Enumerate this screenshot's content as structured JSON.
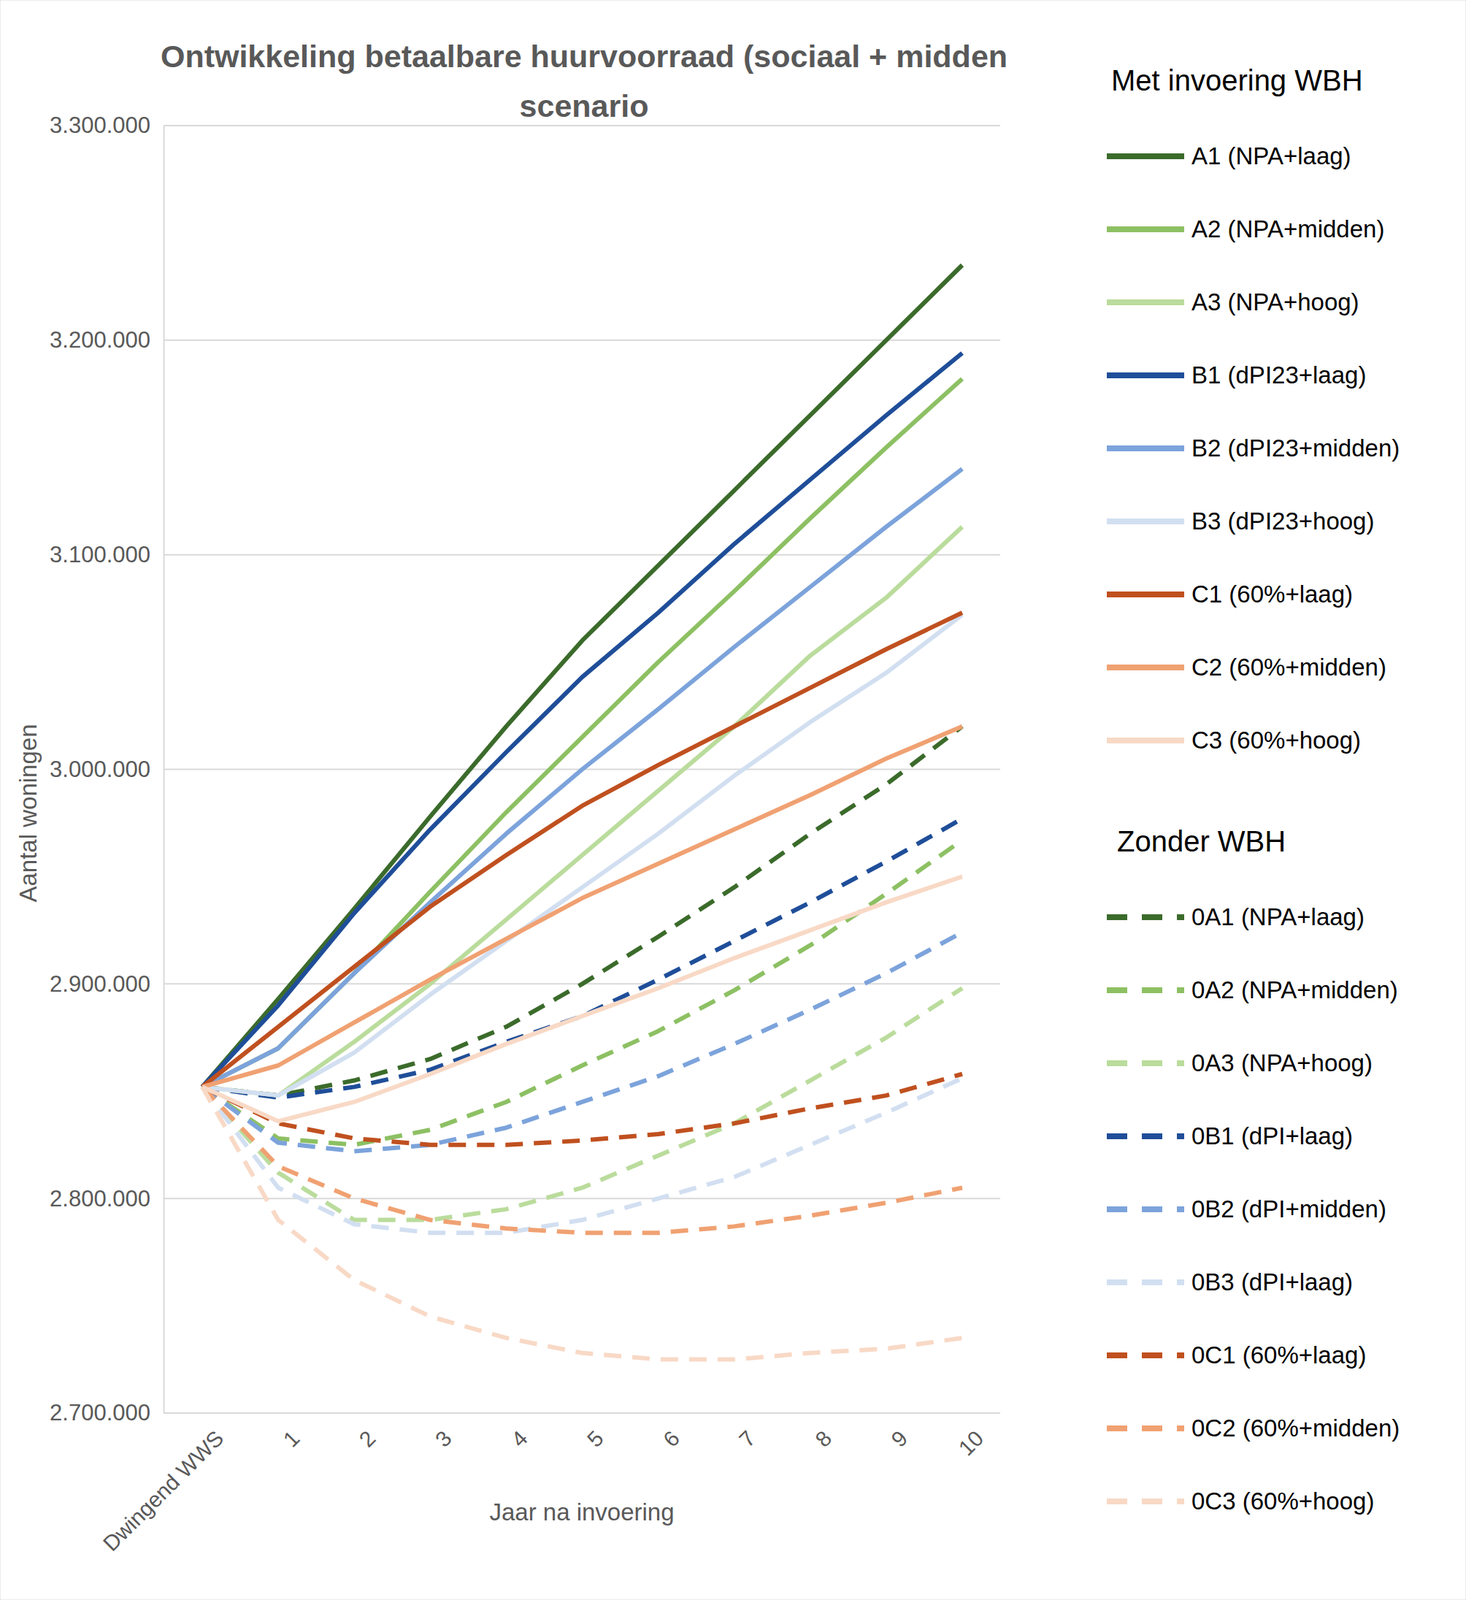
{
  "chart_data": {
    "type": "line",
    "title": "Ontwikkeling betaalbare huurvoorraad (sociaal + midden scenario",
    "x_label": "Jaar na invoering",
    "y_label": "Aantal woningen",
    "legend_titles": [
      "Met invoering WBH",
      "Zonder WBH"
    ],
    "categories": [
      "Dwingend WWS",
      "1",
      "2",
      "3",
      "4",
      "5",
      "6",
      "7",
      "8",
      "9",
      "10"
    ],
    "ylim": [
      2700000,
      3300000
    ],
    "yticks": [
      {
        "value": 2700000,
        "label": "2.700.000"
      },
      {
        "value": 2800000,
        "label": "2.800.000"
      },
      {
        "value": 2900000,
        "label": "2.900.000"
      },
      {
        "value": 3000000,
        "label": "3.000.000"
      },
      {
        "value": 3100000,
        "label": "3.100.000"
      },
      {
        "value": 3200000,
        "label": "3.200.000"
      },
      {
        "value": 3300000,
        "label": "3.300.000"
      }
    ],
    "grid": true,
    "legend": "right",
    "series": [
      {
        "name": "A1 (NPA+laag)",
        "color": "#3b6b2b",
        "line_style": "solid",
        "values": [
          2852000,
          2893000,
          2935000,
          2978000,
          3020000,
          3060000,
          3095000,
          3130000,
          3165000,
          3200000,
          3235000
        ]
      },
      {
        "name": "A2 (NPA+midden)",
        "color": "#8dc063",
        "line_style": "solid",
        "values": [
          2852000,
          2870000,
          2905000,
          2943000,
          2980000,
          3015000,
          3050000,
          3083000,
          3117000,
          3150000,
          3182000
        ]
      },
      {
        "name": "A3 (NPA+hoog)",
        "color": "#badc9c",
        "line_style": "solid",
        "values": [
          2852000,
          2848000,
          2873000,
          2900000,
          2930000,
          2960000,
          2990000,
          3020000,
          3053000,
          3080000,
          3113000
        ]
      },
      {
        "name": "B1 (dPI23+laag)",
        "color": "#1f4e99",
        "line_style": "solid",
        "values": [
          2852000,
          2890000,
          2933000,
          2972000,
          3008000,
          3043000,
          3073000,
          3105000,
          3135000,
          3165000,
          3194000
        ]
      },
      {
        "name": "B2 (dPI23+midden)",
        "color": "#7ca3db",
        "line_style": "solid",
        "values": [
          2852000,
          2870000,
          2905000,
          2938000,
          2970000,
          3000000,
          3028000,
          3057000,
          3085000,
          3113000,
          3140000
        ]
      },
      {
        "name": "B3 (dPI23+hoog)",
        "color": "#d2dff1",
        "line_style": "solid",
        "values": [
          2852000,
          2848000,
          2868000,
          2895000,
          2920000,
          2945000,
          2970000,
          2997000,
          3022000,
          3045000,
          3072000
        ]
      },
      {
        "name": "C1 (60%+laag)",
        "color": "#c0501f",
        "line_style": "solid",
        "values": [
          2852000,
          2880000,
          2908000,
          2936000,
          2960000,
          2983000,
          3002000,
          3020000,
          3038000,
          3056000,
          3073000
        ]
      },
      {
        "name": "C2 (60%+midden)",
        "color": "#f0a172",
        "line_style": "solid",
        "values": [
          2852000,
          2862000,
          2882000,
          2902000,
          2921000,
          2940000,
          2956000,
          2972000,
          2988000,
          3005000,
          3020000
        ]
      },
      {
        "name": "C3 (60%+hoog)",
        "color": "#f8d9c6",
        "line_style": "solid",
        "values": [
          2852000,
          2836000,
          2845000,
          2858000,
          2872000,
          2885000,
          2898000,
          2912000,
          2925000,
          2938000,
          2950000
        ]
      },
      {
        "name": "0A1 (NPA+laag)",
        "color": "#3b6b2b",
        "line_style": "dashed",
        "values": [
          2852000,
          2848000,
          2855000,
          2865000,
          2880000,
          2900000,
          2922000,
          2945000,
          2970000,
          2993000,
          3020000
        ]
      },
      {
        "name": "0A2 (NPA+midden)",
        "color": "#8dc063",
        "line_style": "dashed",
        "values": [
          2852000,
          2828000,
          2825000,
          2832000,
          2845000,
          2862000,
          2878000,
          2897000,
          2918000,
          2942000,
          2967000
        ]
      },
      {
        "name": "0A3 (NPA+hoog)",
        "color": "#badc9c",
        "line_style": "dashed",
        "values": [
          2852000,
          2812000,
          2790000,
          2790000,
          2795000,
          2805000,
          2820000,
          2835000,
          2855000,
          2875000,
          2898000
        ]
      },
      {
        "name": "0B1 (dPI+laag)",
        "color": "#1f4e99",
        "line_style": "dashed",
        "values": [
          2852000,
          2847000,
          2852000,
          2860000,
          2873000,
          2885000,
          2902000,
          2920000,
          2938000,
          2957000,
          2977000
        ]
      },
      {
        "name": "0B2 (dPI+midden)",
        "color": "#7ca3db",
        "line_style": "dashed",
        "values": [
          2852000,
          2826000,
          2822000,
          2825000,
          2833000,
          2845000,
          2857000,
          2872000,
          2888000,
          2905000,
          2924000
        ]
      },
      {
        "name": "0B3 (dPI+laag)",
        "color": "#d2dff1",
        "line_style": "dashed",
        "values": [
          2852000,
          2805000,
          2788000,
          2784000,
          2784000,
          2790000,
          2800000,
          2810000,
          2825000,
          2840000,
          2856000
        ]
      },
      {
        "name": "0C1 (60%+laag)",
        "color": "#c0501f",
        "line_style": "dashed",
        "values": [
          2852000,
          2835000,
          2828000,
          2825000,
          2825000,
          2827000,
          2830000,
          2835000,
          2842000,
          2848000,
          2858000
        ]
      },
      {
        "name": "0C2 (60%+midden)",
        "color": "#f0a172",
        "line_style": "dashed",
        "values": [
          2852000,
          2815000,
          2800000,
          2790000,
          2786000,
          2784000,
          2784000,
          2787000,
          2792000,
          2798000,
          2805000
        ]
      },
      {
        "name": "0C3 (60%+hoog)",
        "color": "#f8d9c6",
        "line_style": "dashed",
        "values": [
          2852000,
          2790000,
          2762000,
          2745000,
          2735000,
          2728000,
          2725000,
          2725000,
          2728000,
          2730000,
          2735000
        ]
      }
    ]
  }
}
